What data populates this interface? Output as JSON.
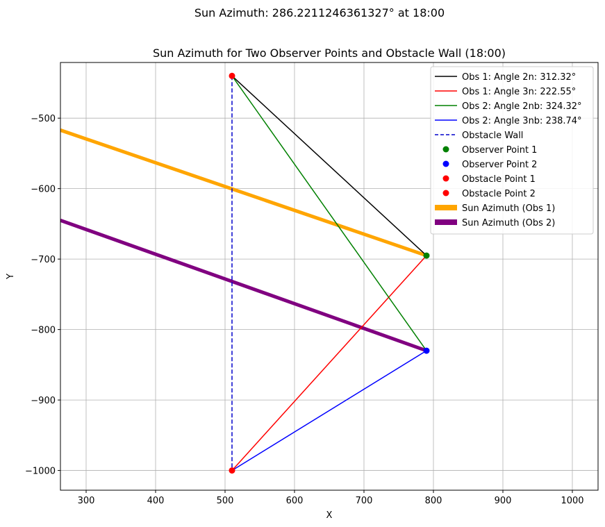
{
  "chart_data": {
    "type": "line",
    "suptitle": "Sun Azimuth: 286.2211246361327° at 18:00",
    "title": "Sun Azimuth for Two Observer Points and Obstacle Wall (18:00)",
    "xlabel": "X",
    "ylabel": "Y",
    "xlim": [
      263,
      1037
    ],
    "ylim": [
      -1028,
      -421
    ],
    "x_ticks": [
      300,
      400,
      500,
      600,
      700,
      800,
      900,
      1000
    ],
    "y_ticks": [
      -500,
      -600,
      -700,
      -800,
      -900,
      -1000
    ],
    "grid": true,
    "legend_position": "top-right",
    "series": [
      {
        "name": "Obs 1: Angle 2n: 312.32°",
        "color": "#000000",
        "style": "solid",
        "width": 1.5,
        "x": [
          790,
          510
        ],
        "y": [
          -695,
          -440
        ]
      },
      {
        "name": "Obs 1: Angle 3n: 222.55°",
        "color": "#ff0000",
        "style": "solid",
        "width": 1.5,
        "x": [
          790,
          510
        ],
        "y": [
          -695,
          -1000
        ]
      },
      {
        "name": "Obs 2: Angle 2nb: 324.32°",
        "color": "#008000",
        "style": "solid",
        "width": 1.5,
        "x": [
          790,
          510
        ],
        "y": [
          -830,
          -440
        ]
      },
      {
        "name": "Obs 2: Angle 3nb: 238.74°",
        "color": "#0000ff",
        "style": "solid",
        "width": 1.5,
        "x": [
          790,
          510
        ],
        "y": [
          -830,
          -1000
        ]
      },
      {
        "name": "Obstacle Wall",
        "color": "#0000cc",
        "style": "dashed",
        "width": 1.5,
        "x": [
          510,
          510
        ],
        "y": [
          -440,
          -1000
        ]
      }
    ],
    "points": [
      {
        "name": "Observer Point 1",
        "color": "#008000",
        "x": 790,
        "y": -695
      },
      {
        "name": "Observer Point 2",
        "color": "#0000ff",
        "x": 790,
        "y": -830
      },
      {
        "name": "Obstacle Point 1",
        "color": "#ff0000",
        "x": 510,
        "y": -440
      },
      {
        "name": "Obstacle Point 2",
        "color": "#ff0000",
        "x": 510,
        "y": -1000
      }
    ],
    "sun_lines": [
      {
        "name": "Sun Azimuth (Obs 1)",
        "color": "#ffa500",
        "width": 5,
        "x": [
          790,
          263
        ],
        "y": [
          -695,
          -517
        ]
      },
      {
        "name": "Sun Azimuth (Obs 2)",
        "color": "#800080",
        "width": 5,
        "x": [
          790,
          263
        ],
        "y": [
          -830,
          -645
        ]
      }
    ]
  }
}
